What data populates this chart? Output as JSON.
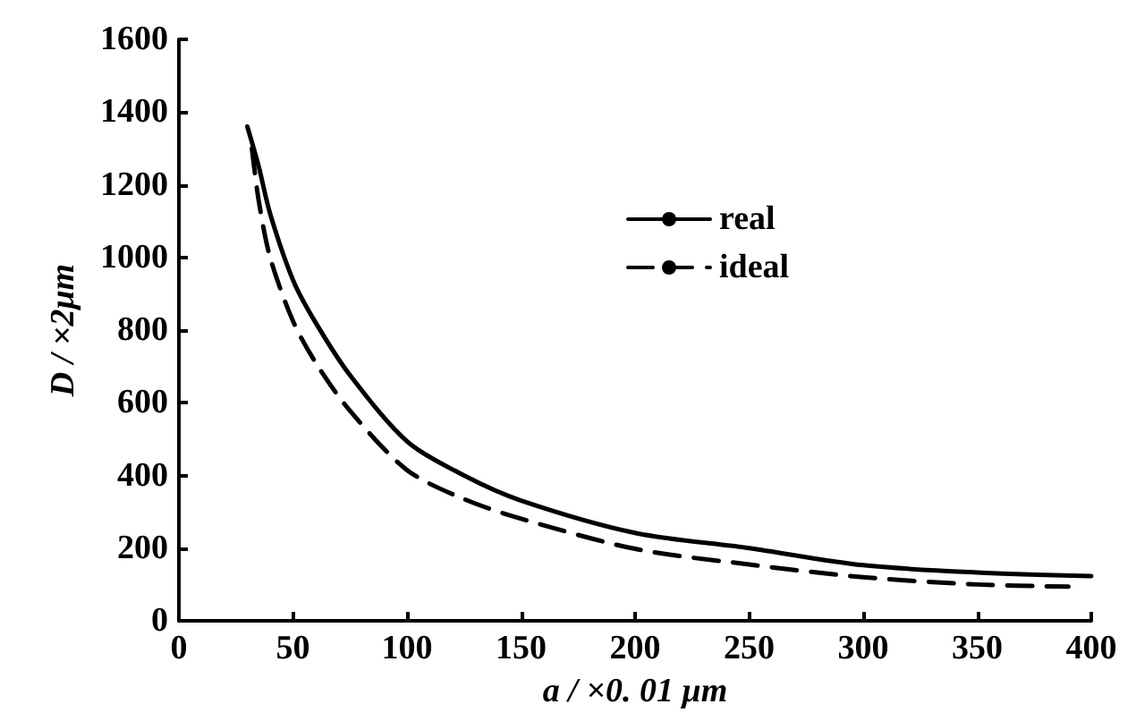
{
  "chart_data": {
    "type": "line",
    "xlabel": "a / ×0. 01 μm",
    "ylabel": "D / ×2μm",
    "xlim": [
      0,
      400
    ],
    "xticks": [
      0,
      50,
      100,
      150,
      200,
      250,
      300,
      350,
      400
    ],
    "ylim": [
      0,
      1600
    ],
    "yticks": [
      0,
      200,
      400,
      600,
      800,
      1000,
      1200,
      1400,
      1600
    ],
    "grid": false,
    "legend": "top right",
    "marker": "none",
    "series": [
      {
        "name": "real",
        "color": "#000000",
        "line_style": "solid",
        "x": [
          30,
          35,
          40,
          50,
          60,
          75,
          100,
          125,
          150,
          200,
          250,
          300,
          350,
          400
        ],
        "values": [
          1360,
          1250,
          1120,
          938,
          820,
          676,
          494,
          400,
          331,
          242,
          200,
          153,
          133,
          123
        ]
      },
      {
        "name": "ideal",
        "color": "#000000",
        "line_style": "dashed",
        "x": [
          32,
          35,
          40,
          50,
          60,
          75,
          100,
          125,
          150,
          200,
          250,
          300,
          350,
          390
        ],
        "values": [
          1300,
          1156,
          1000,
          825,
          710,
          578,
          415,
          335,
          281,
          198,
          155,
          120,
          100,
          94
        ]
      }
    ]
  }
}
